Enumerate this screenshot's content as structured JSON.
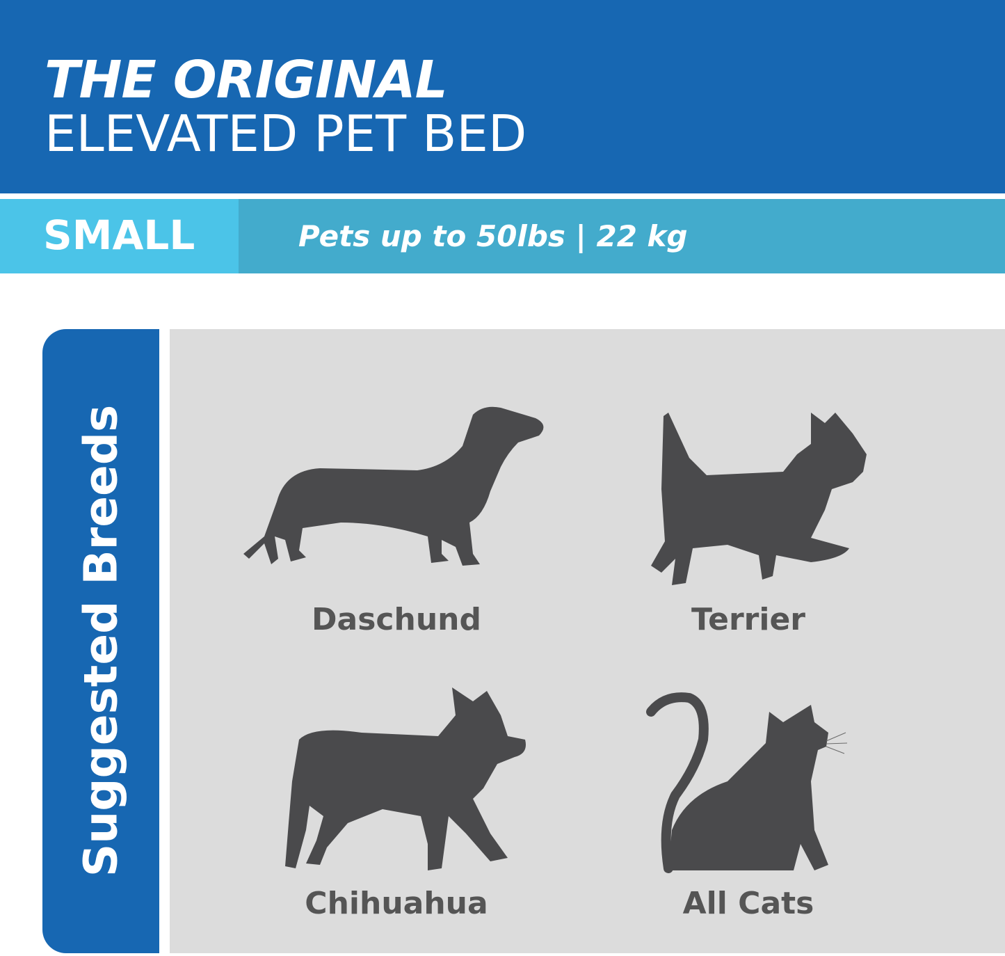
{
  "header": {
    "title_line1": "THE ORIGINAL",
    "title_line2": "ELEVATED PET BED"
  },
  "size_band": {
    "size": "SMALL",
    "capacity": "Pets up to 50lbs | 22 kg"
  },
  "sidebar": {
    "label": "Suggested Breeds"
  },
  "breeds": [
    {
      "label": "Daschund",
      "icon": "dachshund-silhouette-icon"
    },
    {
      "label": "Terrier",
      "icon": "terrier-silhouette-icon"
    },
    {
      "label": "Chihuahua",
      "icon": "chihuahua-silhouette-icon"
    },
    {
      "label": "All Cats",
      "icon": "cat-silhouette-icon"
    }
  ],
  "colors": {
    "header_blue": "#1767b2",
    "band_light": "#4bc4e8",
    "band_dark": "#43abcc",
    "panel_gray": "#dcdcdc",
    "silhouette": "#4a4a4c"
  }
}
